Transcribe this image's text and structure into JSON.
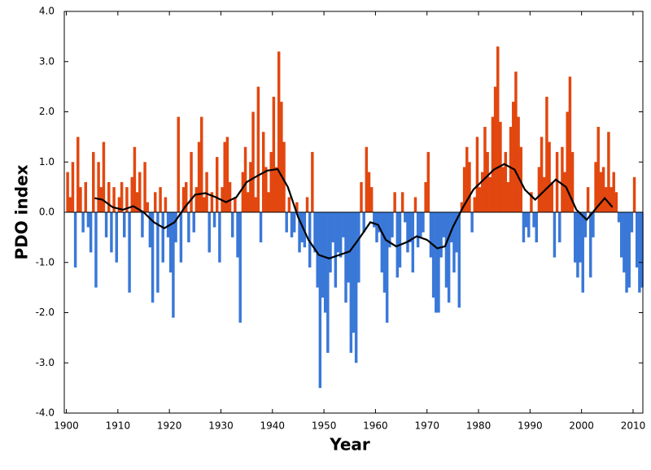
{
  "chart_data": {
    "type": "bar",
    "xlabel": "Year",
    "ylabel": "PDO index",
    "xlim": [
      1899.6,
      2011.9
    ],
    "ylim": [
      -4,
      4
    ],
    "xticks": [
      1900,
      1910,
      1920,
      1930,
      1940,
      1950,
      1960,
      1970,
      1980,
      1990,
      2000,
      2010
    ],
    "yticks": [
      {
        "value": -4,
        "label": "-4.0"
      },
      {
        "value": -3,
        "label": "-3.0"
      },
      {
        "value": -2,
        "label": "-2.0"
      },
      {
        "value": -1,
        "label": "-1.0"
      },
      {
        "value": 0,
        "label": "0.0"
      },
      {
        "value": 1,
        "label": "1.0"
      },
      {
        "value": 2,
        "label": "2.0"
      },
      {
        "value": 3,
        "label": "3.0"
      },
      {
        "value": 4,
        "label": "4.0"
      }
    ],
    "positive_color": "#e2470f",
    "negative_color": "#3a78d8",
    "x": [
      1900.25,
      1900.75,
      1901.25,
      1901.75,
      1902.25,
      1902.75,
      1903.25,
      1903.75,
      1904.25,
      1904.75,
      1905.25,
      1905.75,
      1906.25,
      1906.75,
      1907.25,
      1907.75,
      1908.25,
      1908.75,
      1909.25,
      1909.75,
      1910.25,
      1910.75,
      1911.25,
      1911.75,
      1912.25,
      1912.75,
      1913.25,
      1913.75,
      1914.25,
      1914.75,
      1915.25,
      1915.75,
      1916.25,
      1916.75,
      1917.25,
      1917.75,
      1918.25,
      1918.75,
      1919.25,
      1919.75,
      1920.25,
      1920.75,
      1921.25,
      1921.75,
      1922.25,
      1922.75,
      1923.25,
      1923.75,
      1924.25,
      1924.75,
      1925.25,
      1925.75,
      1926.25,
      1926.75,
      1927.25,
      1927.75,
      1928.25,
      1928.75,
      1929.25,
      1929.75,
      1930.25,
      1930.75,
      1931.25,
      1931.75,
      1932.25,
      1932.75,
      1933.25,
      1933.75,
      1934.25,
      1934.75,
      1935.25,
      1935.75,
      1936.25,
      1936.75,
      1937.25,
      1937.75,
      1938.25,
      1938.75,
      1939.25,
      1939.75,
      1940.25,
      1940.75,
      1941.25,
      1941.75,
      1942.25,
      1942.75,
      1943.25,
      1943.75,
      1944.25,
      1944.75,
      1945.25,
      1945.75,
      1946.25,
      1946.75,
      1947.25,
      1947.75,
      1948.25,
      1948.75,
      1949.25,
      1949.75,
      1950.25,
      1950.75,
      1951.25,
      1951.75,
      1952.25,
      1952.75,
      1953.25,
      1953.75,
      1954.25,
      1954.75,
      1955.25,
      1955.75,
      1956.25,
      1956.75,
      1957.25,
      1957.75,
      1958.25,
      1958.75,
      1959.25,
      1959.75,
      1960.25,
      1960.75,
      1961.25,
      1961.75,
      1962.25,
      1962.75,
      1963.25,
      1963.75,
      1964.25,
      1964.75,
      1965.25,
      1965.75,
      1966.25,
      1966.75,
      1967.25,
      1967.75,
      1968.25,
      1968.75,
      1969.25,
      1969.75,
      1970.25,
      1970.75,
      1971.25,
      1971.75,
      1972.25,
      1972.75,
      1973.25,
      1973.75,
      1974.25,
      1974.75,
      1975.25,
      1975.75,
      1976.25,
      1976.75,
      1977.25,
      1977.75,
      1978.25,
      1978.75,
      1979.25,
      1979.75,
      1980.25,
      1980.75,
      1981.25,
      1981.75,
      1982.25,
      1982.75,
      1983.25,
      1983.75,
      1984.25,
      1984.75,
      1985.25,
      1985.75,
      1986.25,
      1986.75,
      1987.25,
      1987.75,
      1988.25,
      1988.75,
      1989.25,
      1989.75,
      1990.25,
      1990.75,
      1991.25,
      1991.75,
      1992.25,
      1992.75,
      1993.25,
      1993.75,
      1994.25,
      1994.75,
      1995.25,
      1995.75,
      1996.25,
      1996.75,
      1997.25,
      1997.75,
      1998.25,
      1998.75,
      1999.25,
      1999.75,
      2000.25,
      2000.75,
      2001.25,
      2001.75,
      2002.25,
      2002.75,
      2003.25,
      2003.75,
      2004.25,
      2004.75,
      2005.25,
      2005.75,
      2006.25,
      2006.75,
      2007.25,
      2007.75,
      2008.25,
      2008.75,
      2009.25,
      2009.75,
      2010.25,
      2010.75,
      2011.25,
      2011.75
    ],
    "values": [
      0.8,
      0.3,
      1.0,
      -1.1,
      1.5,
      0.5,
      -0.4,
      0.6,
      -0.3,
      -0.8,
      1.2,
      -1.5,
      1.0,
      0.5,
      1.4,
      -0.5,
      0.6,
      -0.8,
      0.5,
      -1.0,
      0.3,
      0.6,
      -0.5,
      0.5,
      -1.6,
      0.7,
      1.3,
      0.4,
      0.8,
      -0.5,
      1.0,
      0.2,
      -0.7,
      -1.8,
      0.4,
      -1.6,
      0.5,
      -1.0,
      0.3,
      -0.5,
      -1.2,
      -2.1,
      -0.6,
      1.9,
      -1.0,
      0.5,
      0.6,
      -0.6,
      1.2,
      -0.4,
      0.5,
      1.4,
      1.9,
      0.3,
      0.8,
      -0.8,
      0.4,
      -0.3,
      1.1,
      -1.0,
      0.5,
      1.4,
      1.5,
      0.6,
      -0.5,
      0.3,
      -0.9,
      -2.2,
      0.8,
      1.3,
      0.4,
      1.0,
      2.0,
      0.3,
      2.5,
      -0.6,
      1.6,
      0.9,
      0.4,
      1.2,
      2.3,
      0.9,
      3.2,
      2.2,
      1.4,
      -0.4,
      0.3,
      -0.5,
      -0.4,
      0.2,
      -0.8,
      -0.6,
      -0.7,
      0.3,
      -1.1,
      1.2,
      -0.8,
      -1.5,
      -3.5,
      -1.7,
      -2.0,
      -2.8,
      -1.2,
      -0.6,
      -1.5,
      -0.8,
      -0.9,
      -0.5,
      -1.8,
      -1.4,
      -2.8,
      -2.4,
      -3.0,
      -1.4,
      0.6,
      -0.4,
      1.3,
      0.8,
      0.5,
      -0.3,
      -0.6,
      -0.4,
      -1.2,
      -1.6,
      -2.2,
      -0.7,
      -0.5,
      0.4,
      -1.3,
      -1.1,
      0.4,
      -0.2,
      -0.8,
      -0.6,
      -1.2,
      0.3,
      -0.7,
      -0.5,
      -0.4,
      0.6,
      1.2,
      -0.9,
      -1.7,
      -2.0,
      -2.0,
      -0.9,
      -0.5,
      -1.5,
      -1.8,
      -0.6,
      -1.2,
      -0.8,
      -1.9,
      0.2,
      0.9,
      1.3,
      1.0,
      -0.4,
      0.3,
      1.5,
      0.5,
      0.8,
      1.7,
      1.2,
      0.7,
      1.9,
      2.5,
      3.3,
      1.8,
      0.9,
      1.2,
      0.6,
      1.7,
      2.2,
      2.8,
      1.9,
      1.3,
      -0.6,
      -0.3,
      -0.5,
      0.4,
      -0.3,
      -0.6,
      0.9,
      1.5,
      0.7,
      2.3,
      1.4,
      0.6,
      -0.9,
      1.2,
      -0.6,
      1.3,
      0.8,
      2.0,
      2.7,
      1.2,
      -1.0,
      -1.3,
      -1.0,
      -1.6,
      -0.5,
      0.5,
      -1.3,
      -0.5,
      1.0,
      1.7,
      0.8,
      0.9,
      0.5,
      1.6,
      0.5,
      0.8,
      0.4,
      -0.2,
      -0.9,
      -1.2,
      -1.6,
      -1.5,
      -0.4,
      0.7,
      -1.1,
      -1.6,
      -1.5
    ],
    "line": {
      "color": "#000000",
      "x": [
        1905.5,
        1907,
        1909,
        1911,
        1913,
        1915,
        1917,
        1919,
        1921,
        1923,
        1925,
        1927,
        1929,
        1931,
        1933,
        1935,
        1937,
        1939,
        1941,
        1943,
        1945,
        1947,
        1949,
        1951,
        1953,
        1955,
        1957,
        1959,
        1960.5,
        1962,
        1964,
        1966,
        1968,
        1970,
        1972,
        1973.5,
        1975,
        1977,
        1979,
        1981,
        1983,
        1985,
        1987,
        1989,
        1991,
        1993,
        1995,
        1997,
        1999,
        2001,
        2003,
        2004.5,
        2006
      ],
      "values": [
        0.28,
        0.25,
        0.1,
        0.05,
        0.12,
        0.0,
        -0.2,
        -0.32,
        -0.2,
        0.1,
        0.35,
        0.38,
        0.3,
        0.2,
        0.3,
        0.6,
        0.72,
        0.83,
        0.86,
        0.5,
        -0.1,
        -0.55,
        -0.85,
        -0.92,
        -0.85,
        -0.78,
        -0.5,
        -0.2,
        -0.25,
        -0.55,
        -0.68,
        -0.6,
        -0.48,
        -0.55,
        -0.72,
        -0.68,
        -0.3,
        0.1,
        0.45,
        0.65,
        0.85,
        0.96,
        0.85,
        0.45,
        0.25,
        0.45,
        0.65,
        0.5,
        0.05,
        -0.15,
        0.1,
        0.28,
        0.1
      ]
    }
  }
}
